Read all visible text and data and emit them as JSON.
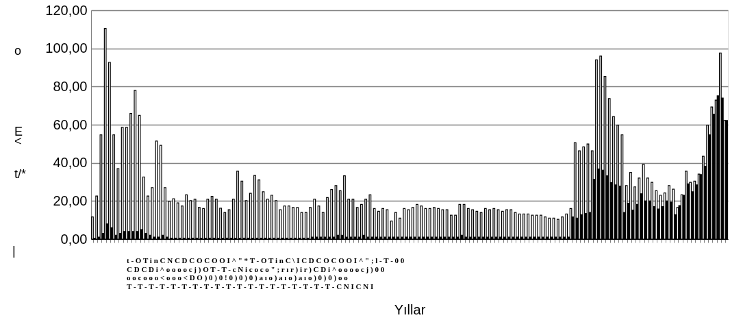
{
  "chart_data": {
    "type": "bar",
    "xlabel": "Yıllar",
    "categories": [
      null,
      null,
      null,
      null,
      null,
      null,
      null,
      null,
      null,
      null,
      null,
      null,
      null,
      null,
      null,
      null,
      null,
      null,
      null,
      null,
      null,
      null,
      null,
      null,
      null,
      null,
      null,
      null,
      null,
      null,
      null,
      null,
      null,
      null,
      null,
      null,
      null,
      null,
      null,
      null,
      null,
      null,
      null,
      null,
      null,
      null,
      null,
      null,
      null,
      null,
      null,
      null,
      null,
      null,
      null,
      null,
      null,
      null,
      null,
      null,
      null,
      null,
      null,
      null,
      null,
      null,
      null,
      null,
      null,
      null,
      null,
      null,
      null,
      null,
      null,
      null,
      null,
      null,
      null,
      null,
      null,
      null,
      null,
      null,
      null,
      null,
      null,
      null,
      null,
      null,
      null,
      null,
      null,
      null,
      null,
      null,
      null,
      null,
      null,
      null,
      null,
      null,
      null,
      null,
      null,
      null,
      null,
      null,
      null,
      null,
      null,
      null,
      null,
      null,
      null,
      null,
      null,
      null,
      null,
      null,
      null,
      null,
      null,
      null,
      null,
      null,
      null,
      null,
      null,
      null,
      null,
      null,
      null,
      null,
      null,
      null,
      null,
      null,
      null,
      null,
      null,
      null,
      null,
      null,
      null,
      null,
      null,
      null,
      null
    ],
    "series": [
      {
        "color": "#ffffff",
        "values": [
          11.6,
          22.6,
          54.7,
          110.4,
          92.7,
          54.7,
          37,
          58.6,
          58.6,
          65.9,
          78,
          64.9,
          32.6,
          22.6,
          27,
          51.4,
          49.2,
          27,
          19.8,
          21.2,
          19,
          17.4,
          23.2,
          20.2,
          21,
          16.6,
          16,
          21,
          22.4,
          21,
          16.2,
          14,
          15.4,
          21,
          35.6,
          30.4,
          20.2,
          24,
          33.4,
          31,
          24.8,
          21,
          23,
          20.2,
          15.4,
          17.4,
          17.4,
          16.6,
          16.6,
          14,
          14,
          16.6,
          21,
          17.4,
          14,
          21.8,
          26,
          28.1,
          25.4,
          33.2,
          21,
          21,
          16.6,
          18.2,
          21,
          23.2,
          16,
          14.6,
          16,
          15.4,
          9.5,
          14,
          11,
          16,
          15.4,
          16.6,
          18.2,
          17.4,
          16,
          16,
          16.6,
          16,
          15.4,
          15.4,
          12.5,
          12.5,
          18.2,
          18.2,
          16,
          15.4,
          14.6,
          14,
          16,
          15.4,
          16,
          15.4,
          14.6,
          15.4,
          15.4,
          14,
          13.2,
          13.2,
          13.2,
          12.5,
          12.5,
          12.5,
          11.6,
          11,
          11,
          10.4,
          11.6,
          13.2,
          16,
          50.5,
          46.3,
          48.4,
          49.9,
          46.3,
          94,
          96,
          85.3,
          73.7,
          64.3,
          59.8,
          54.7,
          28.1,
          35,
          27.4,
          32,
          39.2,
          32,
          29.8,
          25.4,
          23,
          24.2,
          28.1,
          26.2,
          16.6,
          23.2,
          35.6,
          29.8,
          30.4,
          34.1,
          43.4,
          59.8,
          69.3,
          72.9,
          97.6,
          62.2
        ]
      },
      {
        "color": "#000000",
        "values": [
          0.5,
          1,
          3,
          8,
          6,
          2,
          3,
          4,
          4,
          4,
          4,
          5,
          3,
          2,
          1,
          1,
          2,
          1,
          0.5,
          0.5,
          0.5,
          0.5,
          0.5,
          0.5,
          0.5,
          0.5,
          0.5,
          0.5,
          0.5,
          0.5,
          0.5,
          0.5,
          0.5,
          0.5,
          0.5,
          0.5,
          0.5,
          0.5,
          0.5,
          0.5,
          0.5,
          0.5,
          0.5,
          0.5,
          0.5,
          0.5,
          0.5,
          0.5,
          0.5,
          0.5,
          0.5,
          1,
          1,
          1,
          1,
          1,
          1,
          2,
          2,
          1,
          1,
          1,
          1,
          2,
          1,
          1,
          1,
          1,
          1,
          1,
          1,
          1,
          1,
          1,
          1,
          1,
          1,
          1,
          1,
          1,
          1,
          1,
          1,
          1,
          1,
          1,
          2,
          1,
          1,
          1,
          1,
          1,
          1,
          1,
          1,
          1,
          1,
          1,
          1,
          1,
          1,
          1,
          1,
          1,
          1,
          1,
          1,
          1,
          1,
          1,
          1,
          1,
          11.6,
          11,
          12.8,
          13.4,
          14,
          31.4,
          36.8,
          36.2,
          33.2,
          29.6,
          28.4,
          27.8,
          14,
          18.8,
          15.2,
          18.2,
          23.8,
          20,
          20,
          17,
          15.8,
          17,
          20,
          19.4,
          12.8,
          17.6,
          23,
          29,
          24.8,
          28.4,
          33.8,
          38.2,
          54.7,
          65.5,
          75.1,
          74,
          62.2
        ]
      }
    ],
    "ylim": [
      0,
      120
    ],
    "yticks": [
      {
        "value": 0,
        "label": "0,00"
      },
      {
        "value": 20,
        "label": "20,00"
      },
      {
        "value": 40,
        "label": "40,00"
      },
      {
        "value": 60,
        "label": "60,00"
      },
      {
        "value": 80,
        "label": "80,00"
      },
      {
        "value": 100,
        "label": "100,00"
      },
      {
        "value": 120,
        "label": "120,00"
      }
    ],
    "grid": "y",
    "annotations": [
      "o",
      "E",
      "<",
      "t/*",
      "|",
      "t - O T i n C N C D C O C O O I ^ \" * T - O T i n C \\ I C D C O C O O I ^ \" ; l - T - 0 0",
      "C D C D i ^ o o o o c j ) O T - T - c N i c o c o \" ; r ı r ) i r ) C D i ^ o o o o c j ) 0 0",
      "o o c o o o < o o o < D O ) 0 ) 0 ! 0 ) 0 ) 0 ) a ı o ) a ı o ) a ı o ) 0 ) 0 ) o o",
      "T - T - T - T - T - T - T - T - T - T - T - T - T - T - T - T - T - T - T - C N I C N I"
    ]
  }
}
